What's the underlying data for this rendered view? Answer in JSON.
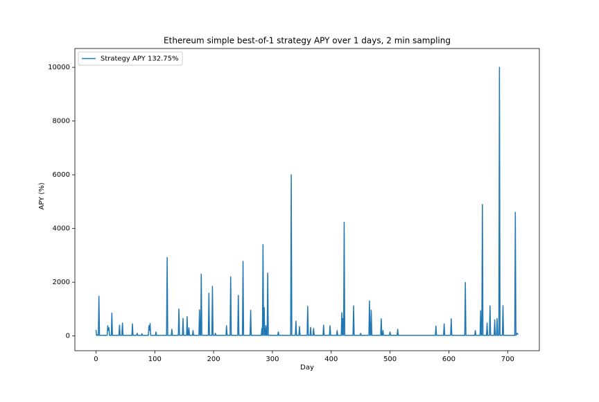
{
  "chart_data": {
    "type": "line",
    "title": "Ethereum simple best-of-1 strategy APY over 1 days, 2 min sampling",
    "x_label": "Day",
    "y_label": "APY (%)",
    "x": [
      0,
      1,
      2,
      3,
      4,
      5,
      6,
      19,
      20,
      21,
      22,
      23,
      26,
      27,
      28,
      39,
      40,
      41,
      44,
      45,
      46,
      61,
      62,
      63,
      69,
      70,
      71,
      77,
      78,
      79,
      89,
      90,
      91,
      92,
      93,
      101,
      102,
      103,
      120,
      121,
      122,
      128,
      129,
      130,
      140,
      141,
      142,
      147,
      148,
      149,
      154,
      155,
      156,
      157,
      158,
      159,
      164,
      165,
      166,
      175,
      176,
      177,
      178,
      179,
      180,
      191,
      192,
      193,
      197,
      198,
      199,
      202,
      203,
      204,
      221,
      222,
      223,
      228,
      229,
      230,
      241,
      242,
      243,
      249,
      250,
      251,
      262,
      263,
      264,
      281,
      282,
      283,
      284,
      285,
      286,
      287,
      288,
      289,
      290,
      291,
      292,
      293,
      309,
      310,
      311,
      331,
      332,
      333,
      339,
      340,
      341,
      345,
      346,
      347,
      359,
      360,
      361,
      364,
      365,
      366,
      369,
      370,
      371,
      386,
      387,
      388,
      397,
      398,
      399,
      409,
      410,
      411,
      417,
      418,
      419,
      420,
      421,
      422,
      423,
      437,
      438,
      439,
      449,
      450,
      451,
      464,
      465,
      466,
      467,
      468,
      469,
      484,
      485,
      486,
      487,
      488,
      489,
      499,
      500,
      501,
      512,
      513,
      514,
      577,
      578,
      579,
      591,
      592,
      593,
      603,
      604,
      605,
      627,
      628,
      629,
      644,
      645,
      646,
      653,
      654,
      655,
      656,
      657,
      658,
      664,
      665,
      666,
      669,
      670,
      671,
      677,
      678,
      679,
      681,
      682,
      683,
      685,
      686,
      687,
      691,
      692,
      693,
      712,
      713,
      714,
      716,
      718
    ],
    "series": [
      {
        "name": "Strategy APY 132.75%",
        "color": "#1f77b4",
        "values": [
          230,
          20,
          50,
          20,
          20,
          1480,
          20,
          20,
          380,
          200,
          300,
          20,
          20,
          850,
          20,
          20,
          400,
          20,
          20,
          480,
          20,
          20,
          450,
          20,
          20,
          100,
          20,
          20,
          80,
          20,
          20,
          380,
          200,
          460,
          20,
          20,
          150,
          20,
          20,
          2920,
          20,
          20,
          250,
          20,
          20,
          1000,
          20,
          20,
          650,
          20,
          20,
          720,
          20,
          20,
          300,
          20,
          20,
          200,
          20,
          20,
          970,
          20,
          20,
          2300,
          20,
          20,
          1590,
          20,
          20,
          1850,
          20,
          20,
          100,
          20,
          20,
          380,
          20,
          20,
          2200,
          20,
          20,
          1510,
          20,
          20,
          2780,
          20,
          20,
          960,
          20,
          20,
          280,
          20,
          3400,
          20,
          1060,
          20,
          20,
          380,
          20,
          20,
          2340,
          20,
          20,
          150,
          20,
          20,
          6000,
          20,
          20,
          550,
          20,
          20,
          350,
          20,
          20,
          1100,
          20,
          20,
          320,
          20,
          20,
          280,
          20,
          20,
          400,
          20,
          20,
          380,
          20,
          20,
          200,
          20,
          20,
          870,
          20,
          650,
          20,
          4230,
          20,
          20,
          1120,
          20,
          20,
          100,
          20,
          20,
          1300,
          20,
          20,
          960,
          20,
          20,
          640,
          20,
          20,
          200,
          20,
          20,
          150,
          20,
          20,
          250,
          20,
          20,
          370,
          20,
          20,
          450,
          20,
          20,
          640,
          20,
          20,
          1990,
          20,
          20,
          200,
          20,
          20,
          940,
          20,
          20,
          4890,
          20,
          20,
          480,
          20,
          20,
          1120,
          20,
          20,
          600,
          20,
          20,
          650,
          20,
          20,
          10000,
          20,
          20,
          1130,
          20,
          20,
          4600,
          20,
          100,
          50
        ]
      }
    ],
    "xlim": [
      -35.9,
      753.9
    ],
    "ylim": [
      -550,
      10700
    ],
    "xticks": [
      0,
      100,
      200,
      300,
      400,
      500,
      600,
      700
    ],
    "yticks": [
      0,
      2000,
      4000,
      6000,
      8000,
      10000
    ],
    "legend": "upper left",
    "grid": false
  }
}
